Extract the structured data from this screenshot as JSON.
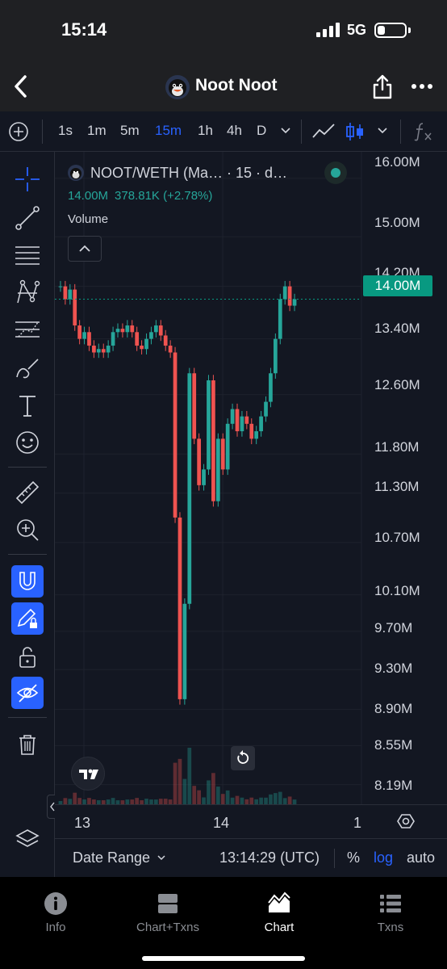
{
  "status_bar": {
    "time": "15:14",
    "network": "5G"
  },
  "nav": {
    "title": "Noot Noot"
  },
  "toolbar": {
    "intervals": [
      {
        "label": "1s",
        "active": false
      },
      {
        "label": "1m",
        "active": false
      },
      {
        "label": "5m",
        "active": false
      },
      {
        "label": "15m",
        "active": true
      },
      {
        "label": "1h",
        "active": false
      },
      {
        "label": "4h",
        "active": false
      },
      {
        "label": "D",
        "active": false
      }
    ]
  },
  "legend": {
    "symbol": "NOOT/WETH (Ma…  · 15 · d…",
    "last": "14.00M",
    "change": "378.81K (+2.78%)",
    "volume_label": "Volume"
  },
  "price_scale": {
    "labels": [
      "16.00M",
      "15.00M",
      "14.20M",
      "13.40M",
      "12.60M",
      "11.80M",
      "11.30M",
      "10.70M",
      "10.10M",
      "9.70M",
      "9.30M",
      "8.90M",
      "8.55M",
      "8.19M"
    ],
    "current": "14.00M"
  },
  "time_axis": {
    "labels": [
      "13",
      "14",
      "1"
    ]
  },
  "bottom_row": {
    "date_range": "Date Range",
    "clock": "13:14:29 (UTC)",
    "percent": "%",
    "log": "log",
    "auto": "auto"
  },
  "tabs": [
    {
      "label": "Info",
      "icon": "info-icon",
      "active": false
    },
    {
      "label": "Chart+Txns",
      "icon": "split-icon",
      "active": false
    },
    {
      "label": "Chart",
      "icon": "chart-icon",
      "active": true
    },
    {
      "label": "Txns",
      "icon": "list-icon",
      "active": false
    }
  ],
  "colors": {
    "up": "#26a69a",
    "down": "#ef5350",
    "accent": "#2962ff",
    "badge": "#089981"
  },
  "chart_data": {
    "type": "candlestick",
    "pair": "NOOT/WETH",
    "interval": "15",
    "scale": "log",
    "ylim": [
      8.1,
      16.3
    ],
    "y_ticks": [
      16.0,
      15.0,
      14.2,
      13.4,
      12.6,
      11.8,
      11.3,
      10.7,
      10.1,
      9.7,
      9.3,
      8.9,
      8.55,
      8.19
    ],
    "current_price": 14.0,
    "price_unit": "M",
    "x_tick_labels": [
      "13",
      "14",
      "1"
    ],
    "close_series": [
      14.2,
      14.0,
      14.15,
      13.6,
      13.4,
      13.5,
      13.3,
      13.2,
      13.25,
      13.2,
      13.3,
      13.5,
      13.55,
      13.5,
      13.6,
      13.5,
      13.3,
      13.25,
      13.4,
      13.5,
      13.6,
      13.45,
      13.3,
      13.2,
      11.0,
      9.0,
      10.0,
      12.9,
      12.0,
      11.4,
      11.6,
      12.8,
      11.2,
      12.0,
      11.6,
      12.2,
      12.4,
      12.1,
      12.3,
      12.2,
      12.0,
      12.1,
      12.3,
      12.5,
      12.9,
      13.4,
      14.0,
      14.2,
      13.9,
      14.0
    ]
  }
}
